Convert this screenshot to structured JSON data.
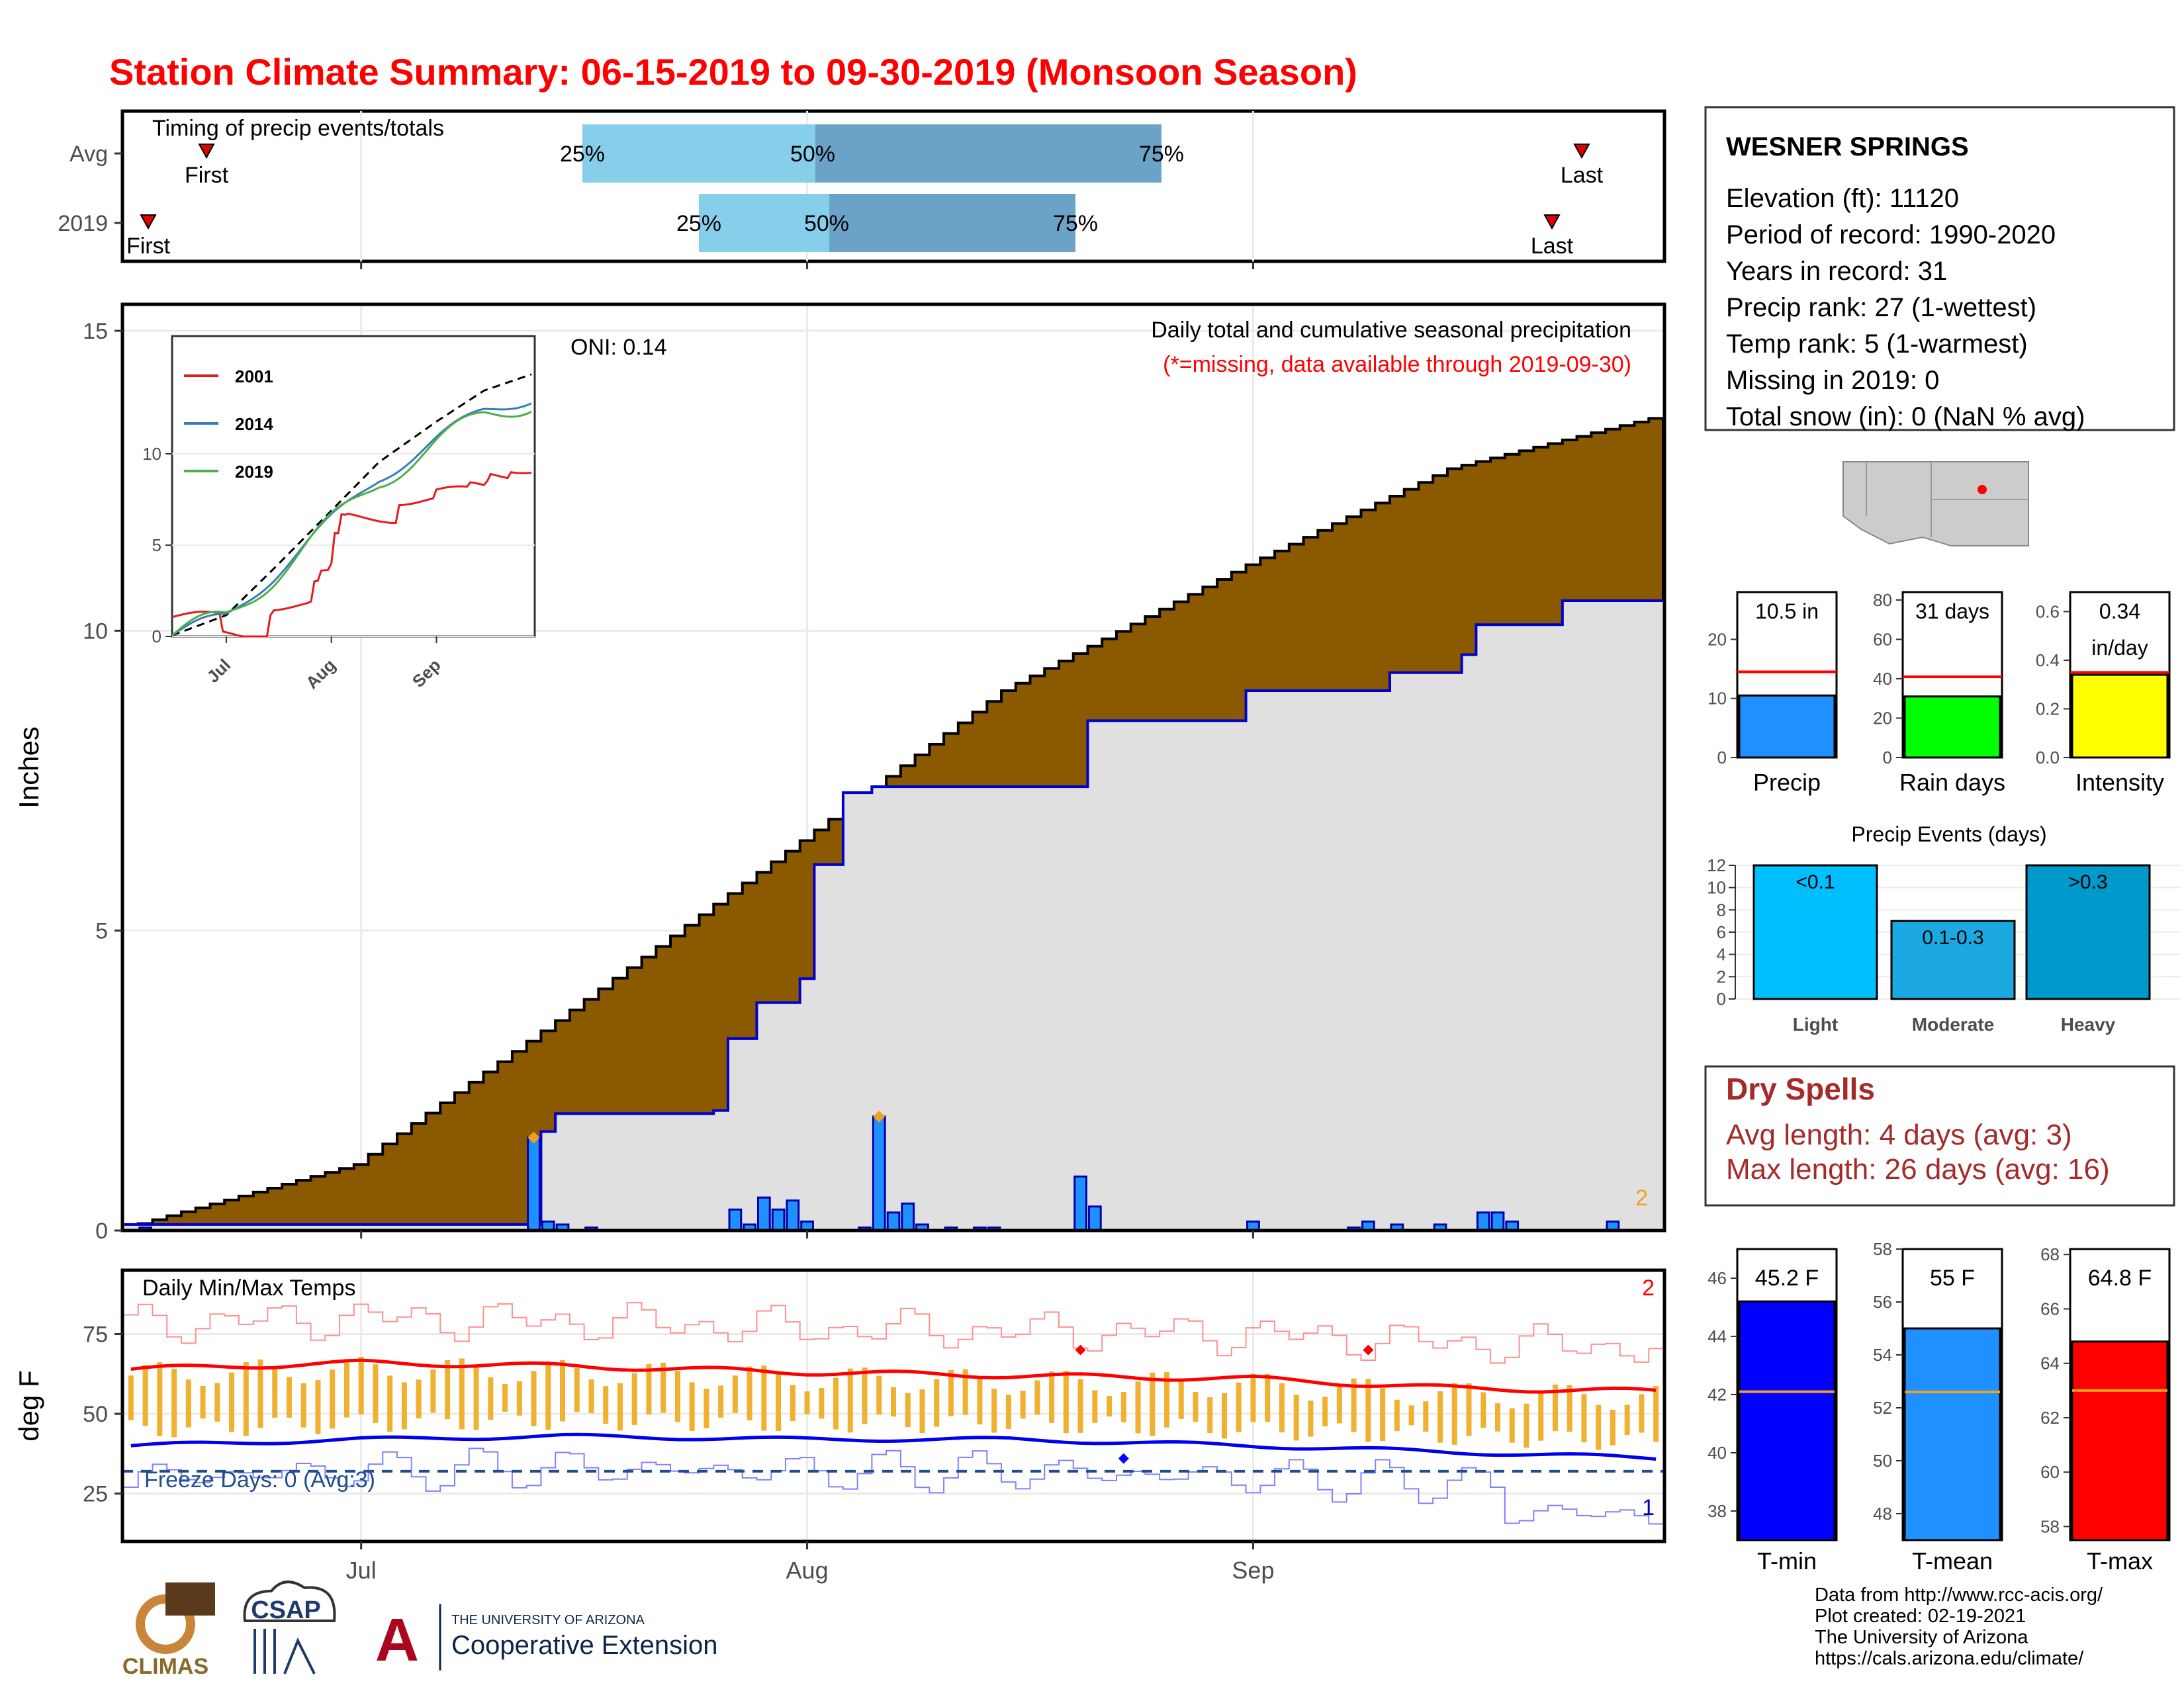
{
  "title": "Station Climate Summary: 06-15-2019 to 09-30-2019 (Monsoon Season)",
  "colors": {
    "title": "#ff0000",
    "cumulative_fill": "#8b5a00",
    "daily_bar": "#1e90ff",
    "baseline_fill": "#e0e0e0",
    "normal_line": "#0000cc",
    "timing_light": "#87ceeb",
    "timing_dark": "#6ba3c8",
    "tmax_line": "#ff0000",
    "tmin_line": "#0000ee",
    "temp_range_bar": "#f0b030",
    "dry_spell_text": "#a52a2a"
  },
  "timing_panel": {
    "label": "Timing of precip events/totals",
    "rows": [
      {
        "name": "Avg",
        "first_label": "First",
        "last_label": "Last",
        "p25": "25%",
        "p50": "50%",
        "p75": "75%"
      },
      {
        "name": "2019",
        "first_label": "First",
        "last_label": "Last",
        "p25": "25%",
        "p50": "50%",
        "p75": "75%"
      }
    ]
  },
  "precip_panel": {
    "ylabel": "Inches",
    "header": "Daily total and cumulative seasonal precipitation",
    "missing_note": "(*=missing, data available through 2019-09-30)",
    "oni": "ONI: 0.14",
    "corner_count": "2",
    "y_ticks": [
      "0",
      "5",
      "10",
      "15"
    ],
    "x_ticks": [
      "Jul",
      "Aug",
      "Sep"
    ]
  },
  "inset": {
    "legend": [
      "2001",
      "2014",
      "2019"
    ],
    "legend_colors": [
      "#e41a1c",
      "#377eb8",
      "#4daf4a"
    ],
    "y_ticks": [
      "0",
      "5",
      "10"
    ],
    "x_ticks": [
      "Jul",
      "Aug",
      "Sep"
    ]
  },
  "temp_panel": {
    "ylabel": "deg F",
    "label": "Daily Min/Max Temps",
    "freeze": "Freeze Days: 0 (Avg:3)",
    "corner_top": "2",
    "corner_bottom": "1",
    "y_ticks": [
      "25",
      "50",
      "75"
    ],
    "x_ticks": [
      "Jul",
      "Aug",
      "Sep"
    ]
  },
  "station": {
    "name": "WESNER SPRINGS",
    "lines": [
      "Elevation (ft): 11120",
      "Period of record: 1990-2020",
      "Years in record: 31",
      "Precip rank: 27 (1-wettest)",
      "Temp rank: 5 (1-warmest)",
      "Missing in 2019: 0",
      "Total snow (in): 0 (NaN % avg)"
    ]
  },
  "summary_bars": [
    {
      "label": "Precip",
      "value_text": "10.5 in",
      "value": 10.5,
      "avg": 14.5,
      "ymax": 28,
      "ticks": [
        "0",
        "10",
        "20"
      ],
      "color": "#1e90ff"
    },
    {
      "label": "Rain days",
      "value_text": "31 days",
      "value": 31,
      "avg": 41,
      "ymax": 84,
      "ticks": [
        "0",
        "20",
        "40",
        "60",
        "80"
      ],
      "color": "#00ff00"
    },
    {
      "label": "Intensity",
      "value_text": "0.34",
      "value_text2": "in/day",
      "value": 0.34,
      "avg": 0.35,
      "ymax": 0.68,
      "ticks": [
        "0.0",
        "0.2",
        "0.4",
        "0.6"
      ],
      "color": "#ffff00"
    }
  ],
  "events": {
    "title": "Precip Events (days)",
    "y_ticks": [
      "0",
      "2",
      "4",
      "6",
      "8",
      "10",
      "12"
    ],
    "categories": [
      "Light",
      "Moderate",
      "Heavy"
    ],
    "bar_labels": [
      "<0.1",
      "0.1-0.3",
      ">0.3"
    ],
    "values": [
      12,
      7,
      12
    ],
    "colors": [
      "#00bfff",
      "#1ca8e0",
      "#0099cc"
    ]
  },
  "dry_spells": {
    "title": "Dry Spells",
    "avg": "Avg length: 4 days (avg: 3)",
    "max": "Max length: 26 days (avg: 16)"
  },
  "temp_summary": [
    {
      "label": "T-min",
      "value_text": "45.2 F",
      "value": 45.2,
      "avg": 42.1,
      "range": [
        37,
        47
      ],
      "ticks": [
        "38",
        "40",
        "42",
        "44",
        "46"
      ],
      "color": "#0000ff"
    },
    {
      "label": "T-mean",
      "value_text": "55 F",
      "value": 55.0,
      "avg": 52.6,
      "range": [
        47,
        58
      ],
      "ticks": [
        "48",
        "50",
        "52",
        "54",
        "56",
        "58"
      ],
      "color": "#1e90ff"
    },
    {
      "label": "T-max",
      "value_text": "64.8 F",
      "value": 64.8,
      "avg": 63.0,
      "range": [
        57.5,
        68.2
      ],
      "ticks": [
        "58",
        "60",
        "62",
        "64",
        "66",
        "68"
      ],
      "color": "#ff0000"
    }
  ],
  "credits": [
    "Data from http://www.rcc-acis.org/",
    "Plot created: 02-19-2021",
    "The University of Arizona",
    "https://cals.arizona.edu/climate/"
  ],
  "logos": {
    "climas": "CLIMAS",
    "csap": "CSAP",
    "ua_line1": "THE UNIVERSITY OF ARIZONA",
    "ua_line2": "Cooperative Extension",
    "ua_letter": "A"
  },
  "chart_data": [
    {
      "type": "area",
      "title": "Daily total and cumulative seasonal precipitation",
      "ylabel": "Inches",
      "ylim": [
        0,
        15
      ],
      "x_range": [
        "2019-06-15",
        "2019-09-30"
      ],
      "series": [
        {
          "name": "cumulative_average",
          "x": [
            "2019-06-15",
            "2019-07-01",
            "2019-07-15",
            "2019-08-01",
            "2019-08-15",
            "2019-09-01",
            "2019-09-15",
            "2019-09-30"
          ],
          "values": [
            0.05,
            1.1,
            3.5,
            6.5,
            9.0,
            11.1,
            12.7,
            13.6
          ]
        },
        {
          "name": "cumulative_2019",
          "x": [
            "2019-06-15",
            "2019-07-13",
            "2019-07-14",
            "2019-07-15",
            "2019-07-26",
            "2019-07-27",
            "2019-07-29",
            "2019-08-01",
            "2019-08-02",
            "2019-08-04",
            "2019-08-06",
            "2019-08-14",
            "2019-08-20",
            "2019-08-21",
            "2019-09-01",
            "2019-09-11",
            "2019-09-16",
            "2019-09-17",
            "2019-09-23",
            "2019-09-30"
          ],
          "values": [
            0.1,
            0.1,
            1.65,
            1.95,
            2.0,
            3.2,
            3.8,
            4.2,
            6.1,
            7.3,
            7.4,
            7.4,
            7.4,
            8.5,
            9.0,
            9.3,
            9.6,
            10.1,
            10.5,
            10.5
          ]
        },
        {
          "name": "daily_2019",
          "x": [
            "2019-06-16",
            "2019-07-13",
            "2019-07-14",
            "2019-07-15",
            "2019-07-17",
            "2019-07-27",
            "2019-07-28",
            "2019-07-29",
            "2019-07-30",
            "2019-07-31",
            "2019-08-01",
            "2019-08-05",
            "2019-08-06",
            "2019-08-07",
            "2019-08-08",
            "2019-08-09",
            "2019-08-11",
            "2019-08-13",
            "2019-08-14",
            "2019-08-20",
            "2019-08-21",
            "2019-09-01",
            "2019-09-08",
            "2019-09-09",
            "2019-09-11",
            "2019-09-14",
            "2019-09-17",
            "2019-09-18",
            "2019-09-19",
            "2019-09-26"
          ],
          "values": [
            0.05,
            1.55,
            0.15,
            0.1,
            0.05,
            0.35,
            0.1,
            0.55,
            0.35,
            0.5,
            0.15,
            0.05,
            1.9,
            0.3,
            0.45,
            0.1,
            0.05,
            0.05,
            0.05,
            0.9,
            0.4,
            0.15,
            0.05,
            0.15,
            0.1,
            0.1,
            0.3,
            0.3,
            0.15,
            0.15
          ]
        }
      ]
    },
    {
      "type": "line",
      "title": "Daily Min/Max Temps",
      "ylabel": "deg F",
      "ylim": [
        10,
        95
      ],
      "x_range": [
        "2019-06-15",
        "2019-09-30"
      ],
      "series": [
        {
          "name": "avg_tmax",
          "x": [
            "2019-06-15",
            "2019-07-01",
            "2019-07-15",
            "2019-08-01",
            "2019-08-15",
            "2019-09-01",
            "2019-09-15",
            "2019-09-30"
          ],
          "values": [
            64,
            66,
            65,
            63,
            62,
            61,
            58,
            57
          ]
        },
        {
          "name": "avg_tmin",
          "x": [
            "2019-06-15",
            "2019-07-01",
            "2019-07-15",
            "2019-08-01",
            "2019-08-15",
            "2019-09-01",
            "2019-09-15",
            "2019-09-30"
          ],
          "values": [
            40,
            42,
            43,
            42,
            42,
            40,
            38,
            36
          ]
        }
      ],
      "freeze_line": 32
    },
    {
      "type": "bar",
      "title": "Precip Events (days)",
      "categories": [
        "Light",
        "Moderate",
        "Heavy"
      ],
      "values": [
        12,
        7,
        12
      ],
      "ylim": [
        0,
        12
      ]
    }
  ]
}
